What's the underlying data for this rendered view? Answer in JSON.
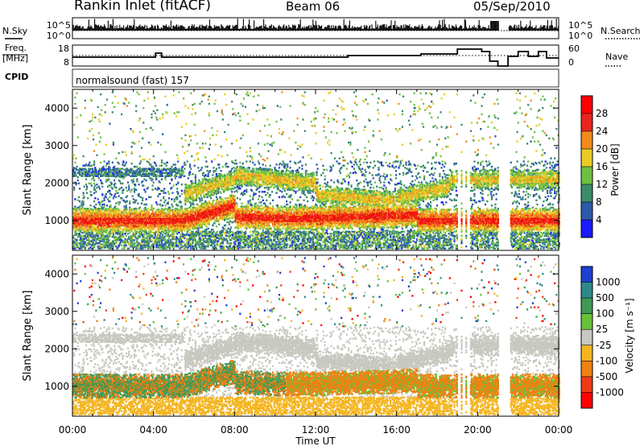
{
  "header": {
    "station": "Rankin Inlet (fitACF)",
    "beam": "Beam 06",
    "date": "05/Sep/2010"
  },
  "ancillary": {
    "nsky_label": "N.Sky",
    "nsearch_label": "N.Search",
    "noise_ticks": [
      "10^5",
      "10^0"
    ],
    "freq_label_top": "Freq.",
    "freq_label_bottom": "[MHz]",
    "freq_ticks": [
      "18",
      "8"
    ],
    "nave_label": "Nave",
    "nave_ticks": [
      "60",
      "0"
    ],
    "cpid_label": "CPID",
    "cpid_text": "normalsound (fast) 157"
  },
  "chart_data": [
    {
      "type": "heatmap",
      "name": "power",
      "ylabel": "Slant Range [km]",
      "ylim": [
        200,
        4500
      ],
      "xlim": [
        0,
        24
      ],
      "xlabel": "",
      "yticks": [
        1000,
        2000,
        3000,
        4000
      ],
      "colorbar": {
        "label": "Power [dB]",
        "ticks": [
          "4",
          "8",
          "12",
          "16",
          "20",
          "24",
          "28"
        ],
        "colors": [
          "#1a1aff",
          "#2b5aa8",
          "#3a8c6a",
          "#6ec043",
          "#e8cc25",
          "#f28a1b",
          "#e8251c",
          "#ff0000"
        ]
      }
    },
    {
      "type": "heatmap",
      "name": "velocity",
      "ylabel": "Slant Range [km]",
      "ylim": [
        200,
        4500
      ],
      "xlim": [
        0,
        24
      ],
      "xlabel": "Time UT",
      "xticks": [
        "00:00",
        "04:00",
        "08:00",
        "12:00",
        "16:00",
        "20:00",
        "00:00"
      ],
      "yticks": [
        1000,
        2000,
        3000,
        4000
      ],
      "colorbar": {
        "label": "Velocity [m s⁻¹]",
        "ticks": [
          "1000",
          "500",
          "100",
          "25",
          "-25",
          "-100",
          "-500",
          "-1000"
        ],
        "colors": [
          "#1f3fd0",
          "#2e8a8a",
          "#3f9a55",
          "#67c23a",
          "#c8c8c0",
          "#f4b520",
          "#f08010",
          "#ef3a18",
          "#ff0000"
        ]
      }
    }
  ]
}
